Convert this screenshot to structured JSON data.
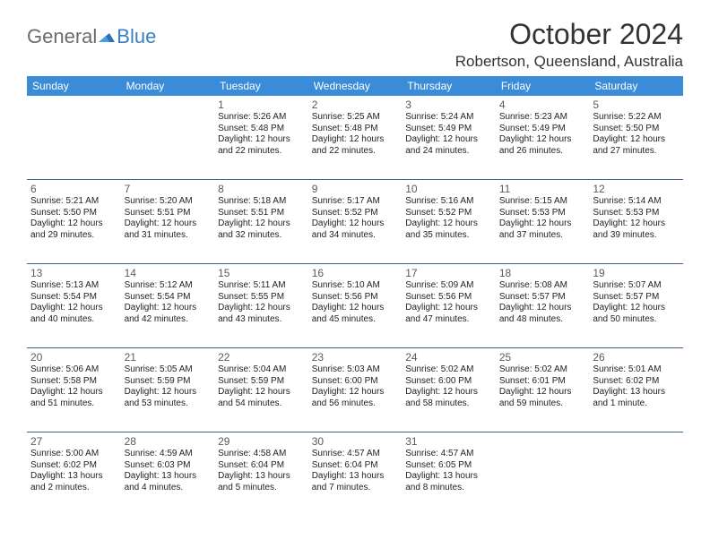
{
  "logo": {
    "part1": "General",
    "part2": "Blue"
  },
  "title": "October 2024",
  "location": "Robertson, Queensland, Australia",
  "colors": {
    "header_bg": "#3a8bd8",
    "header_text": "#ffffff",
    "rule": "#3a5f8a",
    "logo_gray": "#6b6b6b",
    "logo_blue": "#3a7fc4",
    "text": "#222222",
    "daynum": "#5a5a5a"
  },
  "day_names": [
    "Sunday",
    "Monday",
    "Tuesday",
    "Wednesday",
    "Thursday",
    "Friday",
    "Saturday"
  ],
  "weeks": [
    [
      null,
      null,
      {
        "n": "1",
        "r": "5:26 AM",
        "s": "5:48 PM",
        "d": "12 hours and 22 minutes."
      },
      {
        "n": "2",
        "r": "5:25 AM",
        "s": "5:48 PM",
        "d": "12 hours and 22 minutes."
      },
      {
        "n": "3",
        "r": "5:24 AM",
        "s": "5:49 PM",
        "d": "12 hours and 24 minutes."
      },
      {
        "n": "4",
        "r": "5:23 AM",
        "s": "5:49 PM",
        "d": "12 hours and 26 minutes."
      },
      {
        "n": "5",
        "r": "5:22 AM",
        "s": "5:50 PM",
        "d": "12 hours and 27 minutes."
      }
    ],
    [
      {
        "n": "6",
        "r": "5:21 AM",
        "s": "5:50 PM",
        "d": "12 hours and 29 minutes."
      },
      {
        "n": "7",
        "r": "5:20 AM",
        "s": "5:51 PM",
        "d": "12 hours and 31 minutes."
      },
      {
        "n": "8",
        "r": "5:18 AM",
        "s": "5:51 PM",
        "d": "12 hours and 32 minutes."
      },
      {
        "n": "9",
        "r": "5:17 AM",
        "s": "5:52 PM",
        "d": "12 hours and 34 minutes."
      },
      {
        "n": "10",
        "r": "5:16 AM",
        "s": "5:52 PM",
        "d": "12 hours and 35 minutes."
      },
      {
        "n": "11",
        "r": "5:15 AM",
        "s": "5:53 PM",
        "d": "12 hours and 37 minutes."
      },
      {
        "n": "12",
        "r": "5:14 AM",
        "s": "5:53 PM",
        "d": "12 hours and 39 minutes."
      }
    ],
    [
      {
        "n": "13",
        "r": "5:13 AM",
        "s": "5:54 PM",
        "d": "12 hours and 40 minutes."
      },
      {
        "n": "14",
        "r": "5:12 AM",
        "s": "5:54 PM",
        "d": "12 hours and 42 minutes."
      },
      {
        "n": "15",
        "r": "5:11 AM",
        "s": "5:55 PM",
        "d": "12 hours and 43 minutes."
      },
      {
        "n": "16",
        "r": "5:10 AM",
        "s": "5:56 PM",
        "d": "12 hours and 45 minutes."
      },
      {
        "n": "17",
        "r": "5:09 AM",
        "s": "5:56 PM",
        "d": "12 hours and 47 minutes."
      },
      {
        "n": "18",
        "r": "5:08 AM",
        "s": "5:57 PM",
        "d": "12 hours and 48 minutes."
      },
      {
        "n": "19",
        "r": "5:07 AM",
        "s": "5:57 PM",
        "d": "12 hours and 50 minutes."
      }
    ],
    [
      {
        "n": "20",
        "r": "5:06 AM",
        "s": "5:58 PM",
        "d": "12 hours and 51 minutes."
      },
      {
        "n": "21",
        "r": "5:05 AM",
        "s": "5:59 PM",
        "d": "12 hours and 53 minutes."
      },
      {
        "n": "22",
        "r": "5:04 AM",
        "s": "5:59 PM",
        "d": "12 hours and 54 minutes."
      },
      {
        "n": "23",
        "r": "5:03 AM",
        "s": "6:00 PM",
        "d": "12 hours and 56 minutes."
      },
      {
        "n": "24",
        "r": "5:02 AM",
        "s": "6:00 PM",
        "d": "12 hours and 58 minutes."
      },
      {
        "n": "25",
        "r": "5:02 AM",
        "s": "6:01 PM",
        "d": "12 hours and 59 minutes."
      },
      {
        "n": "26",
        "r": "5:01 AM",
        "s": "6:02 PM",
        "d": "13 hours and 1 minute."
      }
    ],
    [
      {
        "n": "27",
        "r": "5:00 AM",
        "s": "6:02 PM",
        "d": "13 hours and 2 minutes."
      },
      {
        "n": "28",
        "r": "4:59 AM",
        "s": "6:03 PM",
        "d": "13 hours and 4 minutes."
      },
      {
        "n": "29",
        "r": "4:58 AM",
        "s": "6:04 PM",
        "d": "13 hours and 5 minutes."
      },
      {
        "n": "30",
        "r": "4:57 AM",
        "s": "6:04 PM",
        "d": "13 hours and 7 minutes."
      },
      {
        "n": "31",
        "r": "4:57 AM",
        "s": "6:05 PM",
        "d": "13 hours and 8 minutes."
      },
      null,
      null
    ]
  ],
  "labels": {
    "sunrise": "Sunrise: ",
    "sunset": "Sunset: ",
    "daylight": "Daylight: "
  }
}
